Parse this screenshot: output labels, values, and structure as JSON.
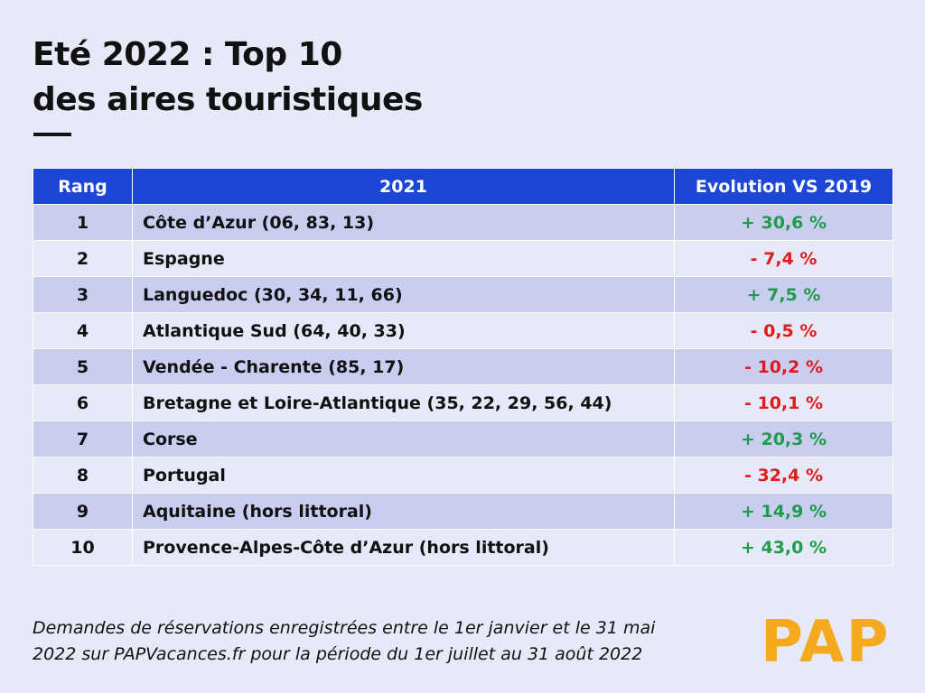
{
  "title": {
    "line1": "Eté 2022 : Top 10",
    "line2": "des aires touristiques"
  },
  "colors": {
    "background": "#e6e9f7",
    "header": "#1e46d6",
    "row_odd": "#c9cdf0",
    "positive": "#1e9c4a",
    "negative": "#e01b1b",
    "brand": "#f5a91e"
  },
  "table": {
    "headers": [
      "Rang",
      "2021",
      "Evolution VS 2019"
    ],
    "rows": [
      {
        "rank": "1",
        "area": "Côte d’Azur (06, 83, 13)",
        "evolution": "+ 30,6 %"
      },
      {
        "rank": "2",
        "area": "Espagne",
        "evolution": "- 7,4 %"
      },
      {
        "rank": "3",
        "area": "Languedoc (30, 34, 11, 66)",
        "evolution": "+ 7,5 %"
      },
      {
        "rank": "4",
        "area": "Atlantique Sud (64, 40, 33)",
        "evolution": "- 0,5 %"
      },
      {
        "rank": "5",
        "area": "Vendée - Charente (85, 17)",
        "evolution": "- 10,2 %"
      },
      {
        "rank": "6",
        "area": "Bretagne et Loire-Atlantique (35, 22, 29, 56, 44)",
        "evolution": "- 10,1 %"
      },
      {
        "rank": "7",
        "area": "Corse",
        "evolution": "+ 20,3 %"
      },
      {
        "rank": "8",
        "area": "Portugal",
        "evolution": "- 32,4 %"
      },
      {
        "rank": "9",
        "area": "Aquitaine (hors littoral)",
        "evolution": "+ 14,9 %"
      },
      {
        "rank": "10",
        "area": "Provence-Alpes-Côte d’Azur (hors littoral)",
        "evolution": "+ 43,0 %"
      }
    ]
  },
  "chart_data": {
    "type": "table",
    "columns": [
      "Rang",
      "2021",
      "Evolution VS 2019"
    ],
    "rows": [
      [
        "1",
        "Côte d’Azur (06, 83, 13)",
        "+ 30,6 %"
      ],
      [
        "2",
        "Espagne",
        "- 7,4 %"
      ],
      [
        "3",
        "Languedoc (30, 34, 11, 66)",
        "+ 7,5 %"
      ],
      [
        "4",
        "Atlantique Sud (64, 40, 33)",
        "- 0,5 %"
      ],
      [
        "5",
        "Vendée - Charente (85, 17)",
        "- 10,2 %"
      ],
      [
        "6",
        "Bretagne et Loire-Atlantique (35, 22, 29, 56, 44)",
        "- 10,1 %"
      ],
      [
        "7",
        "Corse",
        "+ 20,3 %"
      ],
      [
        "8",
        "Portugal",
        "- 32,4 %"
      ],
      [
        "9",
        "Aquitaine (hors littoral)",
        "+ 14,9 %"
      ],
      [
        "10",
        "Provence-Alpes-Côte d’Azur (hors littoral)",
        "+ 43,0 %"
      ]
    ]
  },
  "footnote": {
    "line1": "Demandes de réservations enregistrées entre le 1er janvier et le 31 mai",
    "line2": "2022 sur PAPVacances.fr pour la période du 1er juillet au 31 août 2022"
  },
  "brand": {
    "logo_text": "PAP"
  }
}
